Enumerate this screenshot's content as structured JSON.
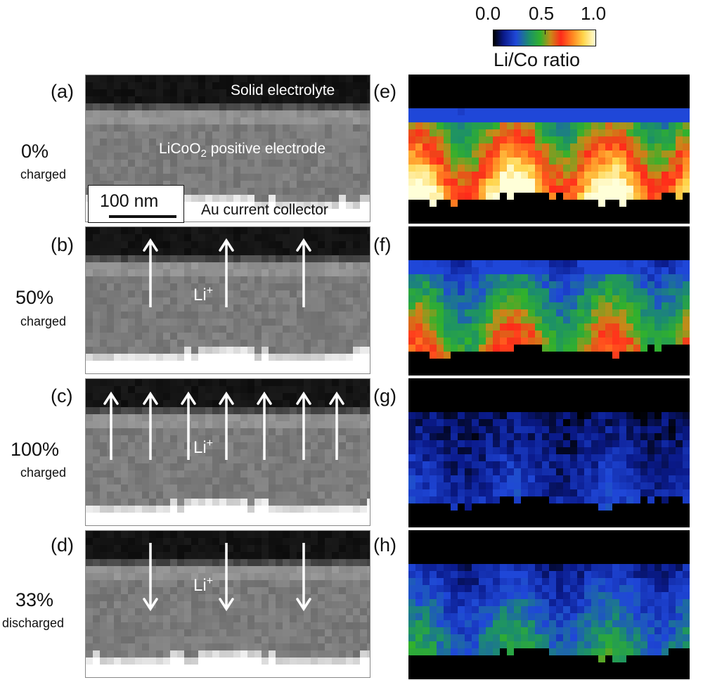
{
  "colorbar": {
    "ticks": [
      "0.0",
      "0.5",
      "1.0"
    ],
    "label": "Li/Co ratio",
    "colors": [
      "#000000",
      "#1f47d8",
      "#31b12c",
      "#ff2a1a",
      "#ffd44a",
      "#ffffd8"
    ]
  },
  "rows": [
    {
      "left_label": "(a)",
      "right_label": "(e)",
      "percent": "0%",
      "state": "charged",
      "arrows": "none",
      "li_level": 0.8
    },
    {
      "left_label": "(b)",
      "right_label": "(f)",
      "percent": "50%",
      "state": "charged",
      "arrows": "up-3",
      "li_level": 0.5
    },
    {
      "left_label": "(c)",
      "right_label": "(g)",
      "percent": "100%",
      "state": "charged",
      "arrows": "up-7",
      "li_level": 0.15
    },
    {
      "left_label": "(d)",
      "right_label": "(h)",
      "percent": "33%",
      "state": "discharged",
      "arrows": "down-3",
      "li_level": 0.3
    }
  ],
  "layers": {
    "top": "Solid electrolyte",
    "middle_pre": "LiCoO",
    "middle_sub": "2",
    "middle_post": " positive electrode",
    "bottom": "Au current collector"
  },
  "scalebar": {
    "label": "100 nm"
  },
  "ion": {
    "symbol": "Li",
    "charge": "+"
  }
}
